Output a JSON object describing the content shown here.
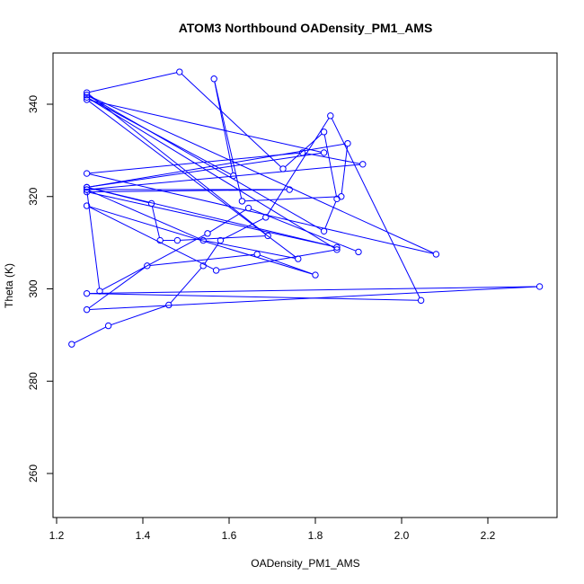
{
  "chart_data": {
    "type": "line",
    "title": "ATOM3 Northbound OADensity_PM1_AMS",
    "xlabel": "OADensity_PM1_AMS",
    "ylabel": "Theta (K)",
    "xlim": [
      1.2,
      2.35
    ],
    "ylim": [
      250,
      350
    ],
    "xticks": [
      1.2,
      1.4,
      1.6,
      1.8,
      2.0,
      2.2
    ],
    "xtick_labels": [
      "1.2",
      "1.4",
      "1.6",
      "1.8",
      "2.0",
      "2.2"
    ],
    "yticks": [
      260,
      280,
      300,
      320,
      340
    ],
    "ytick_labels": [
      "260",
      "280",
      "300",
      "320",
      "340"
    ],
    "grid": false,
    "series_color": "#0000ff",
    "series": [
      {
        "markers": "open-circle",
        "x": [
          1.235,
          1.32,
          1.46,
          1.54,
          1.58,
          1.685,
          1.835,
          2.045,
          1.27,
          2.32,
          1.27,
          1.41,
          1.665,
          1.8,
          1.27,
          1.57,
          1.85,
          1.27,
          1.61,
          1.565,
          1.63,
          1.86,
          1.875,
          1.27,
          1.42,
          1.44,
          1.48,
          1.69,
          1.27,
          1.485,
          1.725,
          1.82,
          1.85,
          1.82,
          1.27,
          2.08,
          1.27,
          1.77,
          1.91,
          1.27,
          1.54,
          1.76,
          1.27,
          1.82,
          1.27,
          1.85,
          1.27,
          1.74,
          1.27,
          1.3,
          1.55,
          1.645,
          1.9
        ],
        "y": [
          288,
          292,
          296.5,
          305,
          310.5,
          315.5,
          337.5,
          297.5,
          299,
          300.5,
          295.5,
          305,
          307.5,
          303,
          318,
          304,
          308.5,
          341.5,
          324.5,
          345.5,
          319,
          320,
          331.5,
          322,
          318.5,
          310.5,
          310.5,
          311.5,
          342.5,
          347,
          326,
          334,
          319.5,
          312.5,
          342,
          307.5,
          325,
          329.5,
          327,
          321.5,
          310.5,
          306.5,
          341,
          329.5,
          322,
          309,
          321,
          321.5,
          321.5,
          299.5,
          312,
          317.5,
          308
        ]
      }
    ]
  }
}
